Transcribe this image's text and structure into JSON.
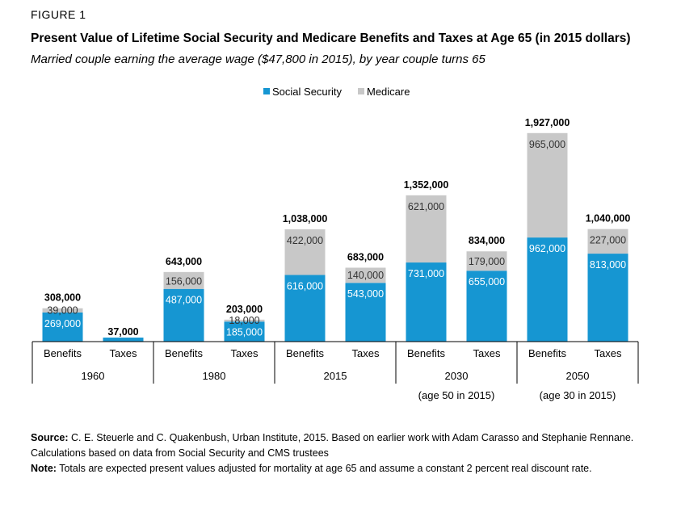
{
  "figure_label": "FIGURE 1",
  "title": "Present Value of Lifetime Social Security and Medicare Benefits and Taxes at Age 65 (in 2015 dollars)",
  "subtitle": "Married couple earning the average wage ($47,800 in 2015), by year couple turns 65",
  "source": {
    "label": "Source:",
    "text": " C. E. Steuerle and C. Quakenbush, Urban Institute, 2015. Based on earlier work with Adam Carasso and Stephanie Rennane. Calculations based on data from Social Security and CMS trustees"
  },
  "note": {
    "label": "Note:",
    "text": " Totals are expected present values adjusted for mortality at age 65 and assume a constant 2 percent real discount rate."
  },
  "chart_data": {
    "type": "bar",
    "stacked": true,
    "legend_position": "top-center",
    "colors": {
      "social_security": "#1696d2",
      "medicare": "#c8c8c8"
    },
    "categories": [
      "Benefits",
      "Taxes",
      "Benefits",
      "Taxes",
      "Benefits",
      "Taxes",
      "Benefits",
      "Taxes",
      "Benefits",
      "Taxes"
    ],
    "groups": [
      {
        "label": "1960",
        "sublabel": ""
      },
      {
        "label": "1980",
        "sublabel": ""
      },
      {
        "label": "2015",
        "sublabel": ""
      },
      {
        "label": "2030",
        "sublabel": "(age 50 in 2015)"
      },
      {
        "label": "2050",
        "sublabel": "(age 30 in 2015)"
      }
    ],
    "series": [
      {
        "name": "Social Security",
        "values": [
          269000,
          37000,
          487000,
          185000,
          616000,
          543000,
          731000,
          655000,
          962000,
          813000
        ]
      },
      {
        "name": "Medicare",
        "values": [
          39000,
          0,
          156000,
          18000,
          422000,
          140000,
          621000,
          179000,
          965000,
          227000
        ]
      }
    ],
    "segment_labels": {
      "Social Security": [
        "269,000",
        "",
        "487,000",
        "185,000",
        "616,000",
        "543,000",
        "731,000",
        "655,000",
        "962,000",
        "813,000"
      ],
      "Medicare": [
        "39,000",
        "",
        "156,000",
        "18,000",
        "422,000",
        "140,000",
        "621,000",
        "179,000",
        "965,000",
        "227,000"
      ]
    },
    "totals": [
      "308,000",
      "37,000",
      "643,000",
      "203,000",
      "1,038,000",
      "683,000",
      "1,352,000",
      "834,000",
      "1,927,000",
      "1,040,000"
    ],
    "ylim": [
      0,
      2000000
    ]
  }
}
